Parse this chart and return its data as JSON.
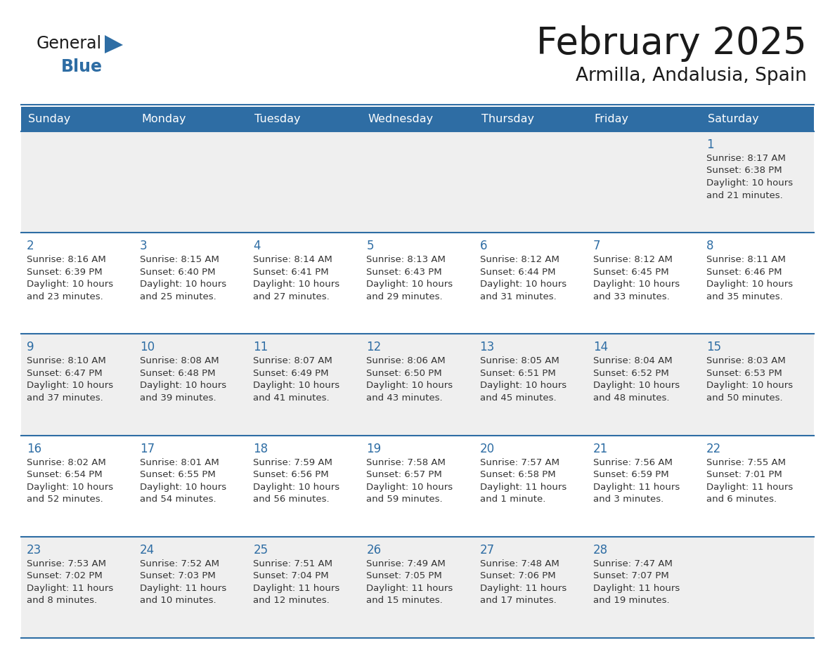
{
  "title": "February 2025",
  "subtitle": "Armilla, Andalusia, Spain",
  "header_bg": "#2E6DA4",
  "header_text_color": "#FFFFFF",
  "cell_border_color": "#2E6DA4",
  "row_alt_bg": "#EFEFEF",
  "row_bg": "#FFFFFF",
  "day_number_color": "#2E6DA4",
  "text_color": "#333333",
  "bg_color": "#FFFFFF",
  "days_of_week": [
    "Sunday",
    "Monday",
    "Tuesday",
    "Wednesday",
    "Thursday",
    "Friday",
    "Saturday"
  ],
  "calendar": [
    [
      null,
      null,
      null,
      null,
      null,
      null,
      {
        "day": 1,
        "sunrise": "8:17 AM",
        "sunset": "6:38 PM",
        "daylight": "10 hours",
        "daylight2": "and 21 minutes."
      }
    ],
    [
      {
        "day": 2,
        "sunrise": "8:16 AM",
        "sunset": "6:39 PM",
        "daylight": "10 hours",
        "daylight2": "and 23 minutes."
      },
      {
        "day": 3,
        "sunrise": "8:15 AM",
        "sunset": "6:40 PM",
        "daylight": "10 hours",
        "daylight2": "and 25 minutes."
      },
      {
        "day": 4,
        "sunrise": "8:14 AM",
        "sunset": "6:41 PM",
        "daylight": "10 hours",
        "daylight2": "and 27 minutes."
      },
      {
        "day": 5,
        "sunrise": "8:13 AM",
        "sunset": "6:43 PM",
        "daylight": "10 hours",
        "daylight2": "and 29 minutes."
      },
      {
        "day": 6,
        "sunrise": "8:12 AM",
        "sunset": "6:44 PM",
        "daylight": "10 hours",
        "daylight2": "and 31 minutes."
      },
      {
        "day": 7,
        "sunrise": "8:12 AM",
        "sunset": "6:45 PM",
        "daylight": "10 hours",
        "daylight2": "and 33 minutes."
      },
      {
        "day": 8,
        "sunrise": "8:11 AM",
        "sunset": "6:46 PM",
        "daylight": "10 hours",
        "daylight2": "and 35 minutes."
      }
    ],
    [
      {
        "day": 9,
        "sunrise": "8:10 AM",
        "sunset": "6:47 PM",
        "daylight": "10 hours",
        "daylight2": "and 37 minutes."
      },
      {
        "day": 10,
        "sunrise": "8:08 AM",
        "sunset": "6:48 PM",
        "daylight": "10 hours",
        "daylight2": "and 39 minutes."
      },
      {
        "day": 11,
        "sunrise": "8:07 AM",
        "sunset": "6:49 PM",
        "daylight": "10 hours",
        "daylight2": "and 41 minutes."
      },
      {
        "day": 12,
        "sunrise": "8:06 AM",
        "sunset": "6:50 PM",
        "daylight": "10 hours",
        "daylight2": "and 43 minutes."
      },
      {
        "day": 13,
        "sunrise": "8:05 AM",
        "sunset": "6:51 PM",
        "daylight": "10 hours",
        "daylight2": "and 45 minutes."
      },
      {
        "day": 14,
        "sunrise": "8:04 AM",
        "sunset": "6:52 PM",
        "daylight": "10 hours",
        "daylight2": "and 48 minutes."
      },
      {
        "day": 15,
        "sunrise": "8:03 AM",
        "sunset": "6:53 PM",
        "daylight": "10 hours",
        "daylight2": "and 50 minutes."
      }
    ],
    [
      {
        "day": 16,
        "sunrise": "8:02 AM",
        "sunset": "6:54 PM",
        "daylight": "10 hours",
        "daylight2": "and 52 minutes."
      },
      {
        "day": 17,
        "sunrise": "8:01 AM",
        "sunset": "6:55 PM",
        "daylight": "10 hours",
        "daylight2": "and 54 minutes."
      },
      {
        "day": 18,
        "sunrise": "7:59 AM",
        "sunset": "6:56 PM",
        "daylight": "10 hours",
        "daylight2": "and 56 minutes."
      },
      {
        "day": 19,
        "sunrise": "7:58 AM",
        "sunset": "6:57 PM",
        "daylight": "10 hours",
        "daylight2": "and 59 minutes."
      },
      {
        "day": 20,
        "sunrise": "7:57 AM",
        "sunset": "6:58 PM",
        "daylight": "11 hours",
        "daylight2": "and 1 minute."
      },
      {
        "day": 21,
        "sunrise": "7:56 AM",
        "sunset": "6:59 PM",
        "daylight": "11 hours",
        "daylight2": "and 3 minutes."
      },
      {
        "day": 22,
        "sunrise": "7:55 AM",
        "sunset": "7:01 PM",
        "daylight": "11 hours",
        "daylight2": "and 6 minutes."
      }
    ],
    [
      {
        "day": 23,
        "sunrise": "7:53 AM",
        "sunset": "7:02 PM",
        "daylight": "11 hours",
        "daylight2": "and 8 minutes."
      },
      {
        "day": 24,
        "sunrise": "7:52 AM",
        "sunset": "7:03 PM",
        "daylight": "11 hours",
        "daylight2": "and 10 minutes."
      },
      {
        "day": 25,
        "sunrise": "7:51 AM",
        "sunset": "7:04 PM",
        "daylight": "11 hours",
        "daylight2": "and 12 minutes."
      },
      {
        "day": 26,
        "sunrise": "7:49 AM",
        "sunset": "7:05 PM",
        "daylight": "11 hours",
        "daylight2": "and 15 minutes."
      },
      {
        "day": 27,
        "sunrise": "7:48 AM",
        "sunset": "7:06 PM",
        "daylight": "11 hours",
        "daylight2": "and 17 minutes."
      },
      {
        "day": 28,
        "sunrise": "7:47 AM",
        "sunset": "7:07 PM",
        "daylight": "11 hours",
        "daylight2": "and 19 minutes."
      },
      null
    ]
  ]
}
